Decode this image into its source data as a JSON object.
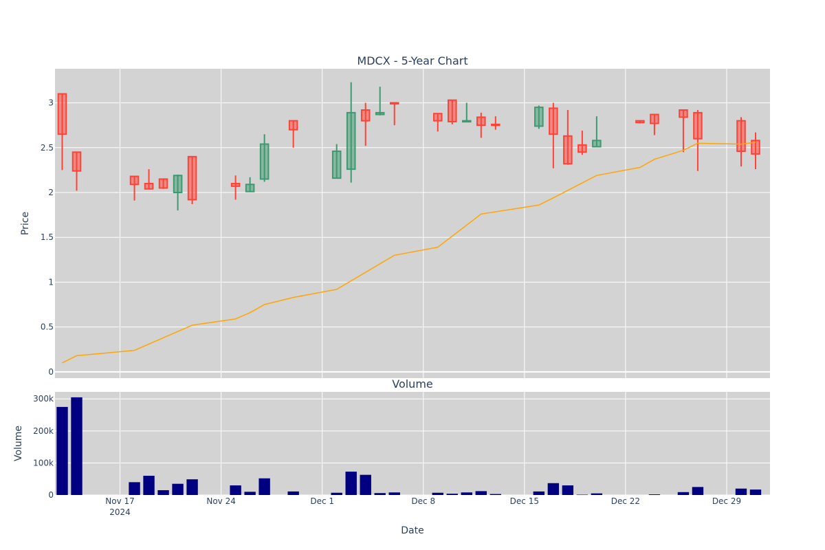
{
  "chart_data": [
    {
      "type": "candlestick",
      "title": "MDCX - 5-Year Chart",
      "xlabel": "",
      "ylabel": "Price",
      "ylim": [
        -0.07,
        3.38
      ],
      "yticks": [
        0,
        0.5,
        1,
        1.5,
        2,
        2.5,
        3
      ],
      "ytick_labels": [
        "0",
        "0.5",
        "1",
        "1.5",
        "2",
        "2.5",
        "3"
      ],
      "grid": true,
      "colors": {
        "up": "#3d9970",
        "down": "#ff4136",
        "overlay": "#ffa500",
        "plot_bg": "#d3d3d3"
      },
      "candles": [
        {
          "x": "2024-11-13",
          "open": 3.1,
          "high": 3.1,
          "low": 2.25,
          "close": 2.65
        },
        {
          "x": "2024-11-14",
          "open": 2.45,
          "high": 2.45,
          "low": 2.02,
          "close": 2.24
        },
        {
          "x": "2024-11-18",
          "open": 2.18,
          "high": 2.18,
          "low": 1.91,
          "close": 2.09
        },
        {
          "x": "2024-11-19",
          "open": 2.1,
          "high": 2.26,
          "low": 2.04,
          "close": 2.04
        },
        {
          "x": "2024-11-20",
          "open": 2.15,
          "high": 2.15,
          "low": 2.04,
          "close": 2.05
        },
        {
          "x": "2024-11-21",
          "open": 2.0,
          "high": 2.2,
          "low": 1.8,
          "close": 2.19
        },
        {
          "x": "2024-11-22",
          "open": 2.4,
          "high": 2.4,
          "low": 1.87,
          "close": 1.92
        },
        {
          "x": "2024-11-25",
          "open": 2.1,
          "high": 2.19,
          "low": 1.92,
          "close": 2.07
        },
        {
          "x": "2024-11-26",
          "open": 2.01,
          "high": 2.17,
          "low": 2.01,
          "close": 2.09
        },
        {
          "x": "2024-11-27",
          "open": 2.15,
          "high": 2.65,
          "low": 2.12,
          "close": 2.54
        },
        {
          "x": "2024-11-29",
          "open": 2.8,
          "high": 2.8,
          "low": 2.5,
          "close": 2.7
        },
        {
          "x": "2024-12-02",
          "open": 2.16,
          "high": 2.54,
          "low": 2.16,
          "close": 2.46
        },
        {
          "x": "2024-12-03",
          "open": 2.26,
          "high": 3.23,
          "low": 2.11,
          "close": 2.89
        },
        {
          "x": "2024-12-04",
          "open": 2.92,
          "high": 3.0,
          "low": 2.52,
          "close": 2.8
        },
        {
          "x": "2024-12-05",
          "open": 2.87,
          "high": 3.18,
          "low": 2.86,
          "close": 2.89
        },
        {
          "x": "2024-12-06",
          "open": 3.0,
          "high": 3.0,
          "low": 2.75,
          "close": 2.99
        },
        {
          "x": "2024-12-09",
          "open": 2.88,
          "high": 2.88,
          "low": 2.68,
          "close": 2.8
        },
        {
          "x": "2024-12-10",
          "open": 3.03,
          "high": 3.03,
          "low": 2.76,
          "close": 2.79
        },
        {
          "x": "2024-12-11",
          "open": 2.79,
          "high": 3.0,
          "low": 2.79,
          "close": 2.8
        },
        {
          "x": "2024-12-12",
          "open": 2.84,
          "high": 2.89,
          "low": 2.61,
          "close": 2.75
        },
        {
          "x": "2024-12-13",
          "open": 2.76,
          "high": 2.85,
          "low": 2.7,
          "close": 2.75
        },
        {
          "x": "2024-12-16",
          "open": 2.74,
          "high": 2.97,
          "low": 2.71,
          "close": 2.95
        },
        {
          "x": "2024-12-17",
          "open": 2.94,
          "high": 3.0,
          "low": 2.27,
          "close": 2.65
        },
        {
          "x": "2024-12-18",
          "open": 2.63,
          "high": 2.92,
          "low": 2.31,
          "close": 2.32
        },
        {
          "x": "2024-12-19",
          "open": 2.53,
          "high": 2.69,
          "low": 2.42,
          "close": 2.45
        },
        {
          "x": "2024-12-20",
          "open": 2.51,
          "high": 2.85,
          "low": 2.51,
          "close": 2.58
        },
        {
          "x": "2024-12-23",
          "open": 2.8,
          "high": 2.8,
          "low": 2.77,
          "close": 2.78
        },
        {
          "x": "2024-12-24",
          "open": 2.87,
          "high": 2.87,
          "low": 2.64,
          "close": 2.77
        },
        {
          "x": "2024-12-26",
          "open": 2.92,
          "high": 2.92,
          "low": 2.45,
          "close": 2.84
        },
        {
          "x": "2024-12-27",
          "open": 2.89,
          "high": 2.92,
          "low": 2.24,
          "close": 2.6
        },
        {
          "x": "2024-12-30",
          "open": 2.8,
          "high": 2.84,
          "low": 2.29,
          "close": 2.46
        },
        {
          "x": "2024-12-31",
          "open": 2.58,
          "high": 2.67,
          "low": 2.26,
          "close": 2.43
        }
      ],
      "overlay_line": {
        "x": [
          "2024-11-13",
          "2024-11-14",
          "2024-11-18",
          "2024-11-22",
          "2024-11-25",
          "2024-11-26",
          "2024-11-27",
          "2024-11-29",
          "2024-12-02",
          "2024-12-06",
          "2024-12-09",
          "2024-12-12",
          "2024-12-16",
          "2024-12-17",
          "2024-12-20",
          "2024-12-23",
          "2024-12-24",
          "2024-12-26",
          "2024-12-27",
          "2024-12-30",
          "2024-12-31"
        ],
        "values": [
          0.1,
          0.18,
          0.24,
          0.52,
          0.59,
          0.66,
          0.75,
          0.83,
          0.92,
          1.3,
          1.39,
          1.76,
          1.86,
          1.94,
          2.19,
          2.28,
          2.37,
          2.47,
          2.55,
          2.54,
          2.56
        ]
      }
    },
    {
      "type": "bar",
      "title": "Volume",
      "xlabel": "Date",
      "ylabel": "Volume",
      "ylim": [
        0,
        322000
      ],
      "yticks": [
        0,
        100000,
        200000,
        300000
      ],
      "ytick_labels": [
        "0",
        "100k",
        "200k",
        "300k"
      ],
      "xlim": [
        "2024-11-12T12:00",
        "2025-01-01T00:00"
      ],
      "xticks": [
        "2024-11-17",
        "2024-11-24",
        "2024-12-01",
        "2024-12-08",
        "2024-12-15",
        "2024-12-22",
        "2024-12-29"
      ],
      "xtick_labels": [
        "Nov 17",
        "Nov 24",
        "Dec 1",
        "Dec 8",
        "Dec 15",
        "Dec 22",
        "Dec 29"
      ],
      "xtick_sublabel": "2024",
      "grid": true,
      "colors": {
        "bar": "#000080",
        "plot_bg": "#d3d3d3"
      },
      "x": [
        "2024-11-13",
        "2024-11-14",
        "2024-11-18",
        "2024-11-19",
        "2024-11-20",
        "2024-11-21",
        "2024-11-22",
        "2024-11-25",
        "2024-11-26",
        "2024-11-27",
        "2024-11-29",
        "2024-12-02",
        "2024-12-03",
        "2024-12-04",
        "2024-12-05",
        "2024-12-06",
        "2024-12-09",
        "2024-12-10",
        "2024-12-11",
        "2024-12-12",
        "2024-12-13",
        "2024-12-16",
        "2024-12-17",
        "2024-12-18",
        "2024-12-19",
        "2024-12-20",
        "2024-12-24",
        "2024-12-26",
        "2024-12-27",
        "2024-12-30",
        "2024-12-31"
      ],
      "values": [
        275000,
        305000,
        40000,
        60000,
        15000,
        35000,
        49000,
        30000,
        10000,
        52000,
        11000,
        7000,
        73000,
        63000,
        6000,
        8000,
        7000,
        4000,
        8000,
        12000,
        3000,
        11000,
        37000,
        30000,
        1000,
        5000,
        2000,
        9000,
        25000,
        20000,
        17000
      ]
    }
  ]
}
